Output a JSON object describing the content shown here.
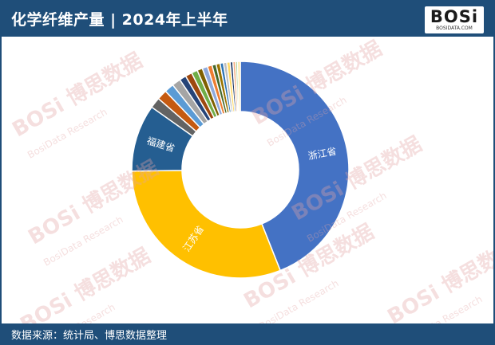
{
  "header": {
    "title": "化学纤维产量 | 2024年上半年",
    "logo_text": "BOSi",
    "logo_sub": "BOSIDATA.COM"
  },
  "footer": {
    "source": "数据来源：统计局、博思数据整理"
  },
  "watermark": {
    "text": "BOSi 博思数据",
    "sub": "BosiData Research"
  },
  "colors": {
    "header_bg": "#1f4e79",
    "zhejiang": "#4472c4",
    "jiangsu": "#ffc000",
    "fujian": "#255e91"
  },
  "chart_data": {
    "type": "pie",
    "donut": true,
    "start_angle_deg": 0,
    "unit": "percent (estimated share)",
    "slices": [
      {
        "label": "浙江省",
        "value": 44.0,
        "color": "#4472c4"
      },
      {
        "label": "江苏省",
        "value": 30.8,
        "color": "#ffc000"
      },
      {
        "label": "福建省",
        "value": 10.0,
        "color": "#255e91"
      },
      {
        "label": "",
        "value": 1.6,
        "color": "#636363"
      },
      {
        "label": "",
        "value": 1.5,
        "color": "#c55a11"
      },
      {
        "label": "",
        "value": 1.4,
        "color": "#5b9bd5"
      },
      {
        "label": "",
        "value": 1.3,
        "color": "#a5a5a5"
      },
      {
        "label": "",
        "value": 1.0,
        "color": "#264478"
      },
      {
        "label": "",
        "value": 1.0,
        "color": "#9e480e"
      },
      {
        "label": "",
        "value": 0.9,
        "color": "#70ad47"
      },
      {
        "label": "",
        "value": 0.8,
        "color": "#7f6000"
      },
      {
        "label": "",
        "value": 0.8,
        "color": "#8faadc"
      },
      {
        "label": "",
        "value": 0.7,
        "color": "#ed7d31"
      },
      {
        "label": "",
        "value": 0.6,
        "color": "#43682b"
      },
      {
        "label": "",
        "value": 0.6,
        "color": "#997300"
      },
      {
        "label": "",
        "value": 0.5,
        "color": "#2e75b6"
      },
      {
        "label": "",
        "value": 0.5,
        "color": "#bfbfbf"
      },
      {
        "label": "",
        "value": 0.5,
        "color": "#ffd966"
      },
      {
        "label": "",
        "value": 0.4,
        "color": "#1f3864"
      },
      {
        "label": "",
        "value": 0.4,
        "color": "#f4b183"
      },
      {
        "label": "",
        "value": 0.3,
        "color": "#a9d18e"
      },
      {
        "label": "",
        "value": 0.4,
        "color": "#ffe699"
      }
    ]
  }
}
